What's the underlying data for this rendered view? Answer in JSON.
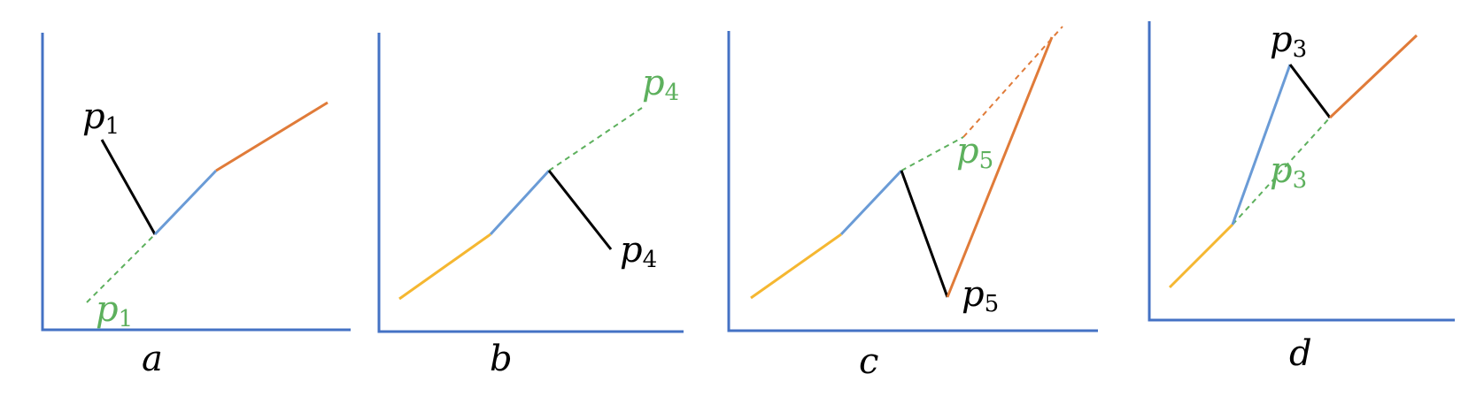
{
  "colors": {
    "axis": "#4472c4",
    "yellow": "#f5b731",
    "blue": "#6a9bd6",
    "orange": "#e07b39",
    "black": "#000000",
    "green": "#5db05d"
  },
  "panels": [
    {
      "label": "a",
      "black_point": {
        "base": "p",
        "sub": "1"
      },
      "green_point": {
        "base": "p",
        "sub": "1"
      }
    },
    {
      "label": "b",
      "black_point": {
        "base": "p",
        "sub": "4"
      },
      "green_point": {
        "base": "p",
        "sub": "4"
      }
    },
    {
      "label": "c",
      "black_point": {
        "base": "p",
        "sub": "5"
      },
      "green_point": {
        "base": "p",
        "sub": "5"
      }
    },
    {
      "label": "d",
      "black_point": {
        "base": "p",
        "sub": "3"
      },
      "green_point": {
        "base": "p",
        "sub": "3"
      }
    }
  ]
}
